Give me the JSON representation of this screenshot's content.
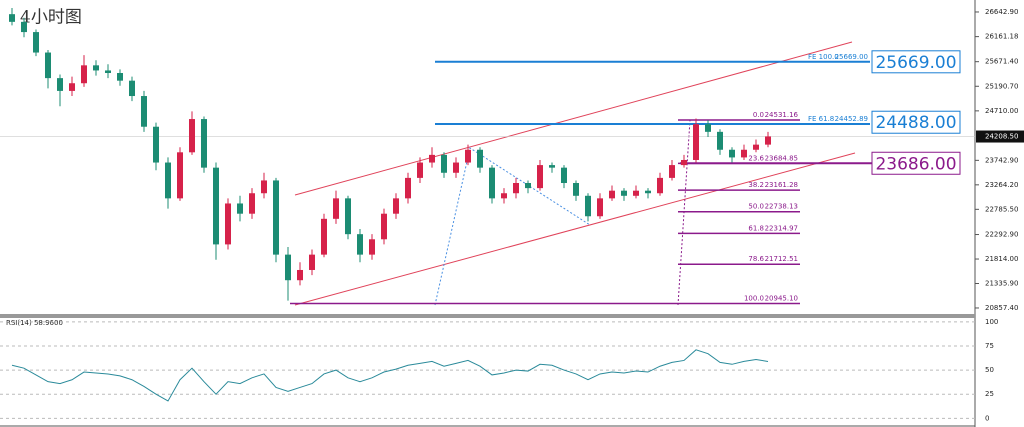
{
  "chart_data": {
    "type": "candlestick",
    "title": "4小时图",
    "up_color": "#d6224a",
    "down_color": "#1c8c73",
    "open": [
      26600,
      26450,
      26250,
      25850,
      25350,
      25100,
      25250,
      25600,
      25500,
      25450,
      25300,
      25000,
      24400,
      23700,
      23000,
      23900,
      24550,
      23600,
      22100,
      22900,
      22700,
      23100,
      23350,
      21900,
      21400,
      21600,
      21900,
      22600,
      23000,
      22300,
      21900,
      22200,
      22700,
      23000,
      23400,
      23700,
      23850,
      23500,
      23700,
      23950,
      23600,
      23000,
      23100,
      23300,
      23200,
      23650,
      23600,
      23300,
      23050,
      22650,
      23000,
      23150,
      23050,
      23150,
      23100,
      23400,
      23650,
      23750,
      24450,
      24300,
      23950,
      23800,
      23950,
      24050
    ],
    "high": [
      26720,
      26530,
      26300,
      25900,
      25420,
      25380,
      25800,
      25700,
      25620,
      25520,
      25380,
      25100,
      24480,
      23800,
      24000,
      24700,
      24600,
      23700,
      23000,
      23050,
      23200,
      23500,
      23400,
      22050,
      21750,
      22000,
      22700,
      23150,
      23050,
      22400,
      22300,
      22800,
      23100,
      23500,
      23800,
      24000,
      23900,
      23800,
      24050,
      24000,
      23650,
      23200,
      23400,
      23350,
      23750,
      23700,
      23650,
      23350,
      23100,
      23100,
      23250,
      23200,
      23250,
      23200,
      23500,
      23750,
      23850,
      24560,
      24530,
      24350,
      24000,
      24050,
      24150,
      24300
    ],
    "low": [
      26380,
      26150,
      25780,
      25150,
      24800,
      25000,
      25180,
      25400,
      25350,
      25200,
      24900,
      24300,
      23550,
      22800,
      22950,
      23850,
      23500,
      21800,
      22000,
      22550,
      22600,
      23000,
      21750,
      21000,
      21300,
      21500,
      21850,
      22500,
      22200,
      21750,
      21800,
      22100,
      22600,
      22900,
      23300,
      23600,
      23400,
      23400,
      23650,
      23500,
      22900,
      22900,
      23000,
      23100,
      23150,
      23500,
      23200,
      22950,
      22550,
      22600,
      22950,
      22950,
      23000,
      23000,
      23050,
      23350,
      23600,
      23700,
      24200,
      23850,
      23700,
      23750,
      23900,
      24000
    ],
    "close": [
      26450,
      26250,
      25850,
      25350,
      25100,
      25250,
      25600,
      25500,
      25450,
      25300,
      25000,
      24400,
      23700,
      23000,
      23900,
      24550,
      23600,
      22100,
      22900,
      22700,
      23100,
      23350,
      21900,
      21400,
      21600,
      21900,
      22600,
      23000,
      22300,
      21900,
      22200,
      22700,
      23000,
      23400,
      23700,
      23850,
      23500,
      23700,
      23950,
      23600,
      23000,
      23100,
      23300,
      23200,
      23650,
      23600,
      23300,
      23050,
      22650,
      23000,
      23150,
      23050,
      23150,
      23100,
      23400,
      23650,
      23750,
      24450,
      24300,
      23950,
      23800,
      23950,
      24050,
      24210
    ],
    "ylim": [
      20720,
      26877
    ],
    "yticks": [
      {
        "value": 26642.9,
        "label": "26642.90"
      },
      {
        "value": 26161.18,
        "label": "26161.18"
      },
      {
        "value": 25671.4,
        "label": "25671.40"
      },
      {
        "value": 25190.7,
        "label": "25190.70"
      },
      {
        "value": 24710,
        "label": "24710.00"
      },
      {
        "value": 23742.9,
        "label": "23742.90"
      },
      {
        "value": 23264.2,
        "label": "23264.20"
      },
      {
        "value": 22785.5,
        "label": "22785.50"
      },
      {
        "value": 22292.9,
        "label": "22292.90"
      },
      {
        "value": 21814,
        "label": "21814.00"
      },
      {
        "value": 21335.9,
        "label": "21335.90"
      },
      {
        "value": 20857.4,
        "label": "20857.40"
      }
    ],
    "last_price": {
      "value": 24208.5,
      "label": "24208.50"
    },
    "fe_levels": [
      {
        "text": "FE 100.0",
        "value": 25669,
        "label": "25669.00",
        "color": "#1a7fd4"
      },
      {
        "text": "FE 61.8",
        "value": 24452.89,
        "label": "24452.89",
        "color": "#1a7fd4"
      }
    ],
    "fib_color": "#8b1a8b",
    "fib_levels": [
      {
        "ratio": "0.0",
        "value": 24531.16,
        "label": "24531.16"
      },
      {
        "ratio": "23.6",
        "value": 23684.85,
        "label": "23684.85"
      },
      {
        "ratio": "38.2",
        "value": 23161.28,
        "label": "23161.28"
      },
      {
        "ratio": "50.0",
        "value": 22738.13,
        "label": "22738.13"
      },
      {
        "ratio": "61.8",
        "value": 22314.97,
        "label": "22314.97"
      },
      {
        "ratio": "78.6",
        "value": 21712.51,
        "label": "21712.51"
      },
      {
        "ratio": "100.0",
        "value": 20945.1,
        "label": "20945.10"
      }
    ],
    "price_boxes": [
      {
        "value": 25669,
        "label": "25669.00",
        "color": "#1a7fd4"
      },
      {
        "value": 24488,
        "label": "24488.00",
        "color": "#1a7fd4"
      },
      {
        "value": 23686,
        "label": "23686.00",
        "color": "#8b1a8b"
      }
    ],
    "rsi": {
      "label": "RSI(14) 58.9600",
      "color": "#2a8a9a",
      "values": [
        55,
        52,
        45,
        38,
        36,
        40,
        48,
        47,
        46,
        44,
        40,
        33,
        25,
        18,
        40,
        52,
        38,
        25,
        38,
        36,
        42,
        46,
        32,
        28,
        32,
        36,
        46,
        50,
        42,
        38,
        42,
        48,
        51,
        55,
        57,
        59,
        54,
        57,
        60,
        54,
        45,
        47,
        50,
        49,
        56,
        55,
        50,
        46,
        40,
        46,
        48,
        47,
        49,
        48,
        54,
        58,
        60,
        71,
        67,
        58,
        56,
        59,
        61,
        58.96
      ],
      "ylim": [
        -9,
        104
      ],
      "yticks": [
        100,
        75,
        50,
        25,
        0
      ]
    }
  }
}
